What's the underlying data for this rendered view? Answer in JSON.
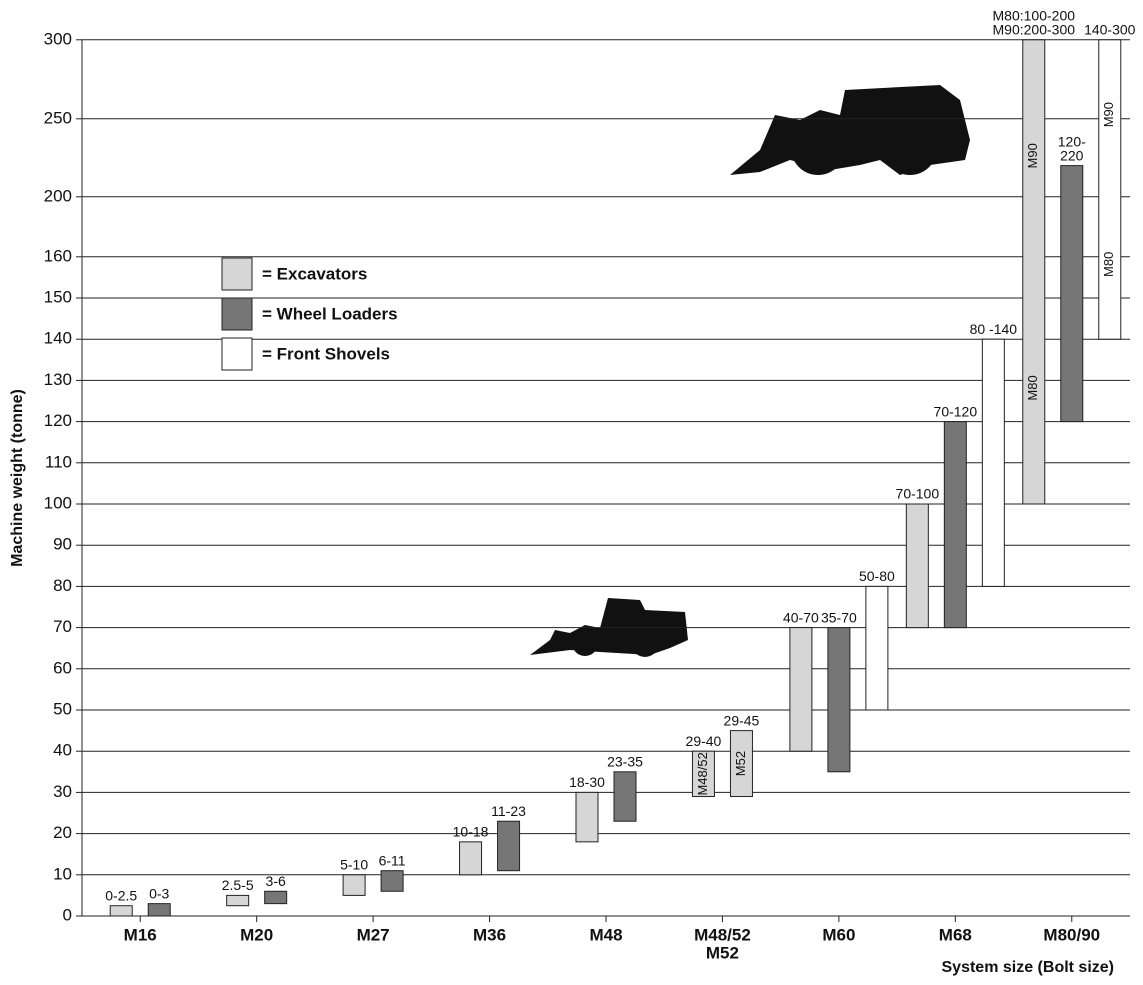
{
  "chart_data": {
    "type": "range-bar",
    "y_title": "Machine weight (tonne)",
    "x_title": "System size (Bolt size)",
    "yticks": [
      0,
      10,
      20,
      30,
      40,
      50,
      60,
      70,
      80,
      90,
      100,
      110,
      120,
      130,
      140,
      150,
      160,
      200,
      250,
      300
    ],
    "legend": [
      {
        "label": "= Excavators",
        "color": "#d6d6d6"
      },
      {
        "label": "= Wheel Loaders",
        "color": "#767676"
      },
      {
        "label": "= Front Shovels",
        "color": "#ffffff"
      }
    ],
    "groups": [
      {
        "category": [
          "M16"
        ],
        "bars": [
          {
            "low": 0,
            "high": 2.5,
            "color": "#d6d6d6",
            "label": [
              "0-2.5"
            ]
          },
          {
            "low": 0,
            "high": 3,
            "color": "#767676",
            "label": [
              "0-3"
            ]
          }
        ]
      },
      {
        "category": [
          "M20"
        ],
        "bars": [
          {
            "low": 2.5,
            "high": 5,
            "color": "#d6d6d6",
            "label": [
              "2.5-5"
            ]
          },
          {
            "low": 3,
            "high": 6,
            "color": "#767676",
            "label": [
              "3-6"
            ]
          }
        ]
      },
      {
        "category": [
          "M27"
        ],
        "bars": [
          {
            "low": 5,
            "high": 10,
            "color": "#d6d6d6",
            "label": [
              "5-10"
            ]
          },
          {
            "low": 6,
            "high": 11,
            "color": "#767676",
            "label": [
              "6-11"
            ]
          }
        ]
      },
      {
        "category": [
          "M36"
        ],
        "bars": [
          {
            "low": 10,
            "high": 18,
            "color": "#d6d6d6",
            "label": [
              "10-18"
            ]
          },
          {
            "low": 11,
            "high": 23,
            "color": "#767676",
            "label": [
              "11-23"
            ]
          }
        ]
      },
      {
        "category": [
          "M48"
        ],
        "bars": [
          {
            "low": 18,
            "high": 30,
            "color": "#d6d6d6",
            "label": [
              "18-30"
            ]
          },
          {
            "low": 23,
            "high": 35,
            "color": "#767676",
            "label": [
              "23-35"
            ]
          }
        ]
      },
      {
        "category": [
          "M48/52",
          "M52"
        ],
        "bars": [
          {
            "low": 29,
            "high": 40,
            "color": "#d6d6d6",
            "label": [
              "29-40"
            ],
            "inner": [
              "M48/52"
            ]
          },
          {
            "low": 29,
            "high": 45,
            "color": "#d6d6d6",
            "label": [
              "29-45"
            ],
            "inner": [
              "M52"
            ]
          }
        ]
      },
      {
        "category": [
          "M60"
        ],
        "bars": [
          {
            "low": 40,
            "high": 70,
            "color": "#d6d6d6",
            "label": [
              "40-70"
            ]
          },
          {
            "low": 35,
            "high": 70,
            "color": "#767676",
            "label": [
              "35-70"
            ]
          },
          {
            "low": 50,
            "high": 80,
            "color": "#ffffff",
            "label": [
              "50-80"
            ]
          }
        ]
      },
      {
        "category": [
          "M68"
        ],
        "bars": [
          {
            "low": 70,
            "high": 100,
            "color": "#d6d6d6",
            "label": [
              "70-100"
            ]
          },
          {
            "low": 70,
            "high": 120,
            "color": "#767676",
            "label": [
              "70-120"
            ]
          },
          {
            "low": 80,
            "high": 140,
            "color": "#ffffff",
            "label": [
              "80 -140"
            ]
          }
        ]
      },
      {
        "category": [
          "M80/90"
        ],
        "bars": [
          {
            "low": 100,
            "high": 300,
            "color": "#d6d6d6",
            "label": [
              "M80:100-200",
              "M90:200-300"
            ],
            "inner": [
              "M80",
              "M90"
            ]
          },
          {
            "low": 120,
            "high": 220,
            "color": "#767676",
            "label": [
              "120-",
              "220"
            ]
          },
          {
            "low": 140,
            "high": 300,
            "color": "#ffffff",
            "label": [
              "140-300"
            ],
            "inner": [
              "M80",
              "M90"
            ]
          }
        ]
      }
    ]
  }
}
